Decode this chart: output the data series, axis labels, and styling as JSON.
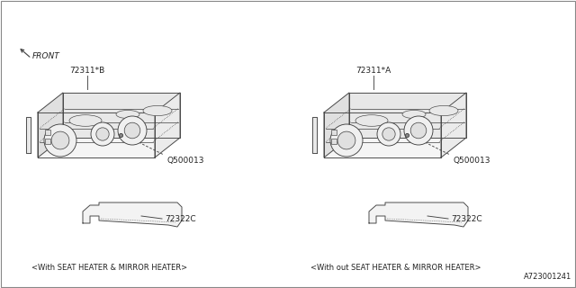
{
  "bg_color": "#ffffff",
  "line_color": "#444444",
  "text_color": "#222222",
  "diagram_id": "A723001241",
  "left_label": "<With SEAT HEATER & MIRROR HEATER>",
  "right_label": "<With out SEAT HEATER & MIRROR HEATER>",
  "left_part1": "72311*B",
  "right_part1": "72311*A",
  "shared_part2": "Q500013",
  "shared_part3": "72322C",
  "front_label": "FRONT"
}
